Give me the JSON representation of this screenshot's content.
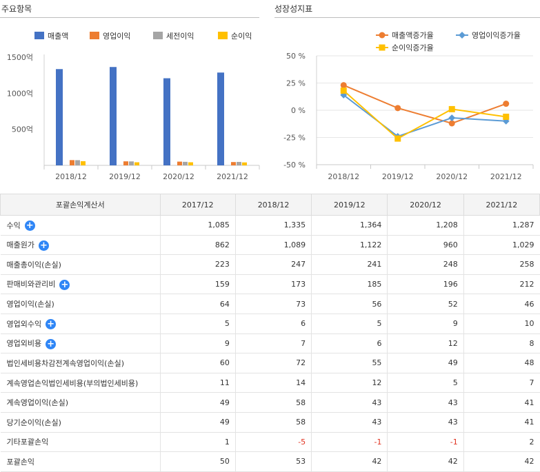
{
  "chart_data": [
    {
      "type": "bar",
      "title": "주요항목",
      "categories": [
        "2018/12",
        "2019/12",
        "2020/12",
        "2021/12"
      ],
      "yticks": [
        "500억",
        "1000억",
        "1500억"
      ],
      "ylim": [
        0,
        1500
      ],
      "legend_position": "top",
      "series": [
        {
          "name": "매출액",
          "color": "#4472c4",
          "values": [
            1335,
            1364,
            1208,
            1287
          ]
        },
        {
          "name": "영업이익",
          "color": "#ed7d31",
          "values": [
            73,
            56,
            52,
            46
          ]
        },
        {
          "name": "세전이익",
          "color": "#a5a5a5",
          "values": [
            72,
            55,
            49,
            48
          ]
        },
        {
          "name": "순이익",
          "color": "#ffc000",
          "values": [
            58,
            43,
            43,
            41
          ]
        }
      ]
    },
    {
      "type": "line",
      "title": "성장성지표",
      "categories": [
        "2018/12",
        "2019/12",
        "2020/12",
        "2021/12"
      ],
      "yticks": [
        "50 %",
        "25 %",
        "0 %",
        "-25 %",
        "-50 %"
      ],
      "ylim": [
        -50,
        50
      ],
      "legend_position": "top-right",
      "series": [
        {
          "name": "매출액증가율",
          "color": "#ed7d31",
          "marker": "circle",
          "values": [
            23,
            2,
            -12,
            6
          ]
        },
        {
          "name": "영업이익증가율",
          "color": "#5b9bd5",
          "marker": "diamond",
          "values": [
            14,
            -24,
            -7,
            -10
          ]
        },
        {
          "name": "순이익증가율",
          "color": "#ffc000",
          "marker": "square",
          "values": [
            18,
            -26,
            1,
            -6
          ]
        }
      ]
    }
  ],
  "table": {
    "header": [
      "포괄손익계산서",
      "2017/12",
      "2018/12",
      "2019/12",
      "2020/12",
      "2021/12"
    ],
    "rows": [
      {
        "label": "수익",
        "expand": true,
        "values": [
          "1,085",
          "1,335",
          "1,364",
          "1,208",
          "1,287"
        ]
      },
      {
        "label": "매출원가",
        "expand": true,
        "values": [
          "862",
          "1,089",
          "1,122",
          "960",
          "1,029"
        ]
      },
      {
        "label": "매출총이익(손실)",
        "expand": false,
        "values": [
          "223",
          "247",
          "241",
          "248",
          "258"
        ]
      },
      {
        "label": "판매비와관리비",
        "expand": true,
        "values": [
          "159",
          "173",
          "185",
          "196",
          "212"
        ]
      },
      {
        "label": "영업이익(손실)",
        "expand": false,
        "values": [
          "64",
          "73",
          "56",
          "52",
          "46"
        ]
      },
      {
        "label": "영업외수익",
        "expand": true,
        "values": [
          "5",
          "6",
          "5",
          "9",
          "10"
        ]
      },
      {
        "label": "영업외비용",
        "expand": true,
        "values": [
          "9",
          "7",
          "6",
          "12",
          "8"
        ]
      },
      {
        "label": "법인세비용차감전계속영업이익(손실)",
        "expand": false,
        "values": [
          "60",
          "72",
          "55",
          "49",
          "48"
        ]
      },
      {
        "label": "계속영업손익법인세비용(부의법인세비용)",
        "expand": false,
        "values": [
          "11",
          "14",
          "12",
          "5",
          "7"
        ]
      },
      {
        "label": "계속영업이익(손실)",
        "expand": false,
        "values": [
          "49",
          "58",
          "43",
          "43",
          "41"
        ]
      },
      {
        "label": "당기순이익(손실)",
        "expand": false,
        "values": [
          "49",
          "58",
          "43",
          "43",
          "41"
        ]
      },
      {
        "label": "기타포괄손익",
        "expand": false,
        "values": [
          "1",
          "-5",
          "-1",
          "-1",
          "2"
        ]
      },
      {
        "label": "포괄손익",
        "expand": false,
        "values": [
          "50",
          "53",
          "42",
          "42",
          "42"
        ]
      }
    ],
    "expand_symbol": "+"
  }
}
